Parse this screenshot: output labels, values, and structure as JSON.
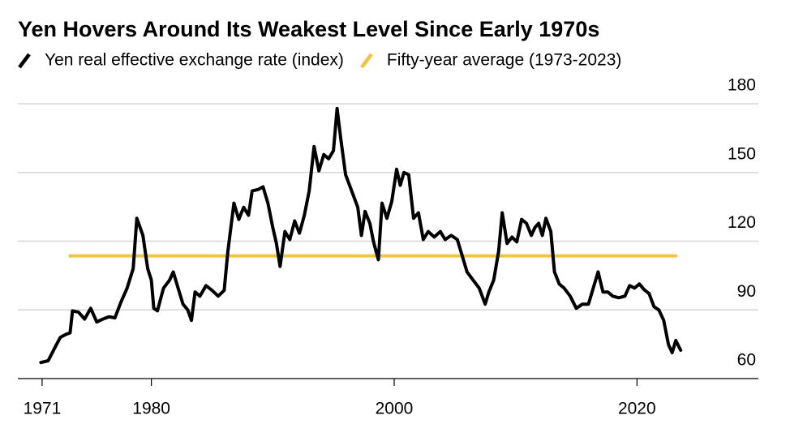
{
  "chart_data": {
    "type": "line",
    "title": "Yen Hovers Around Its Weakest Level Since Early 1970s",
    "y_axis_side": "right",
    "grid": true,
    "xlim": [
      1969,
      2030
    ],
    "ylim": [
      60,
      180
    ],
    "xticks": [
      1971,
      1980,
      2000,
      2020
    ],
    "yticks": [
      60,
      90,
      120,
      150,
      180
    ],
    "series": [
      {
        "name": "Yen real effective exchange rate (index)",
        "color": "#000000",
        "x": [
          1970.9,
          1971.5,
          1972,
          1972.5,
          1973,
          1973.3,
          1973.5,
          1974,
          1974.5,
          1975,
          1975.5,
          1976,
          1976.5,
          1977,
          1977.5,
          1978,
          1978.5,
          1978.8,
          1979.3,
          1979.7,
          1980,
          1980.2,
          1980.5,
          1981,
          1981.5,
          1981.8,
          1982.2,
          1982.6,
          1983,
          1983.3,
          1983.6,
          1984,
          1984.5,
          1985,
          1985.5,
          1986,
          1986.3,
          1986.8,
          1987.2,
          1987.6,
          1988,
          1988.3,
          1988.8,
          1989.2,
          1989.6,
          1990,
          1990.3,
          1990.6,
          1991,
          1991.4,
          1991.8,
          1992.2,
          1992.6,
          1993,
          1993.4,
          1993.8,
          1994.2,
          1994.6,
          1995,
          1995.3,
          1995.6,
          1996,
          1996.5,
          1997,
          1997.3,
          1997.6,
          1998,
          1998.3,
          1998.7,
          1999,
          1999.4,
          1999.8,
          2000.2,
          2000.5,
          2000.8,
          2001.2,
          2001.6,
          2002,
          2002.4,
          2002.8,
          2003.3,
          2003.8,
          2004.2,
          2004.7,
          2005.2,
          2005.6,
          2006,
          2006.5,
          2007,
          2007.5,
          2007.8,
          2008.2,
          2008.6,
          2008.9,
          2009.3,
          2009.7,
          2010.1,
          2010.5,
          2010.9,
          2011.3,
          2011.6,
          2011.9,
          2012.2,
          2012.5,
          2012.9,
          2013.2,
          2013.6,
          2014,
          2014.5,
          2015,
          2015.5,
          2016,
          2016.4,
          2016.8,
          2017.2,
          2017.6,
          2018,
          2018.5,
          2019,
          2019.4,
          2019.8,
          2020.2,
          2020.6,
          2021,
          2021.4,
          2021.8,
          2022.2,
          2022.6,
          2022.9,
          2023.2,
          2023.6
        ],
        "values": [
          67,
          67.8,
          73,
          78,
          79.4,
          80,
          89.6,
          89,
          86,
          90.7,
          84.7,
          86,
          87,
          86.5,
          93.5,
          99.5,
          108,
          130,
          122.5,
          108,
          103,
          90.7,
          89.6,
          99.5,
          103,
          106.6,
          99.5,
          92.5,
          90,
          85.4,
          97.8,
          96,
          100.6,
          98.5,
          96,
          98.5,
          115.4,
          136.6,
          129.5,
          134.8,
          131.3,
          141.9,
          142.6,
          143.7,
          136.6,
          126,
          119,
          109,
          124.2,
          120.7,
          128.8,
          123.5,
          131.3,
          141.9,
          161.3,
          150.7,
          157.8,
          156,
          159.5,
          177.9,
          164.8,
          149,
          141.9,
          134.8,
          122.5,
          133,
          127.8,
          119.7,
          111.9,
          136.6,
          130,
          137.3,
          151.4,
          144.4,
          150,
          149,
          130,
          132.4,
          120.7,
          124.2,
          121.8,
          124.2,
          120.7,
          122.5,
          120.7,
          113.7,
          106.6,
          103,
          99.5,
          92.5,
          97.8,
          103,
          115.4,
          132.4,
          119,
          121.8,
          119.7,
          129.5,
          127.8,
          122.5,
          126,
          127.8,
          122.5,
          130,
          124.2,
          106.6,
          101.3,
          99.5,
          96,
          90.7,
          92.5,
          92.5,
          99.5,
          106.6,
          97.8,
          97.8,
          96,
          95.3,
          96,
          100.6,
          99.5,
          101.3,
          98.8,
          97.1,
          91.4,
          90,
          85.4,
          74.8,
          71.3,
          76.6,
          72.4
        ]
      },
      {
        "name": "Fifty-year average (1973-2023)",
        "color": "#f2c443",
        "x": [
          1973.3,
          2023.2
        ],
        "values": [
          113.6,
          113.6
        ]
      }
    ]
  }
}
